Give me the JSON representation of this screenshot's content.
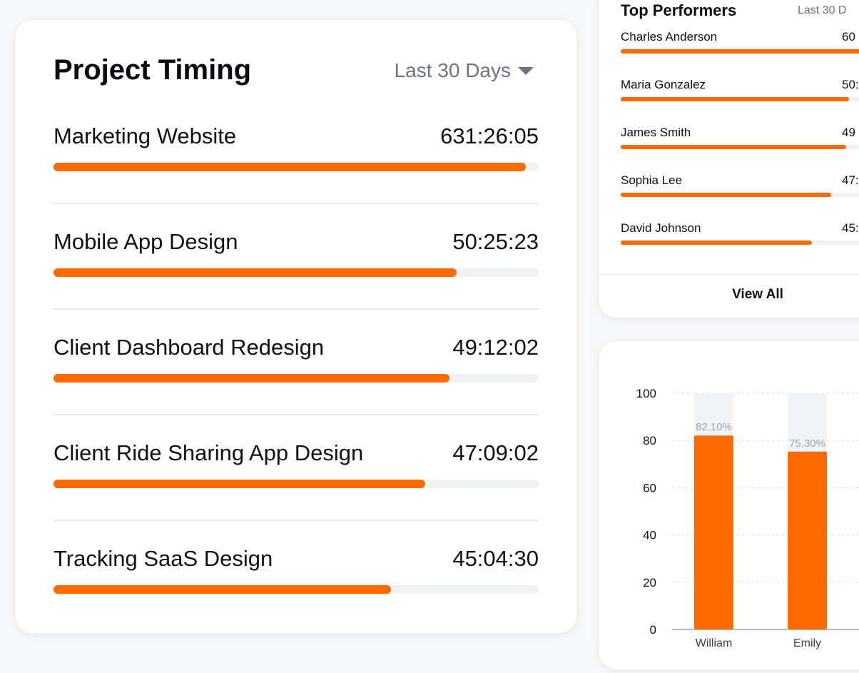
{
  "project_timing": {
    "title": "Project Timing",
    "range": "Last 30 Days",
    "rows": [
      {
        "name": "Marketing Website",
        "time": "631:26:05",
        "progress": 0.974
      },
      {
        "name": "Mobile App Design",
        "time": "50:25:23",
        "progress": 0.831
      },
      {
        "name": "Client Dashboard Redesign",
        "time": "49:12:02",
        "progress": 0.816
      },
      {
        "name": "Client Ride Sharing App Design",
        "time": "47:09:02",
        "progress": 0.766
      },
      {
        "name": "Tracking SaaS Design",
        "time": "45:04:30",
        "progress": 0.696
      }
    ]
  },
  "top_performers": {
    "title": "Top Performers",
    "range": "Last 30 D",
    "rows": [
      {
        "name": "Charles Anderson",
        "time": "60",
        "progress": 1.0
      },
      {
        "name": "Maria Gonzalez",
        "time": "50:",
        "progress": 0.82
      },
      {
        "name": "James Smith",
        "time": "49",
        "progress": 0.809
      },
      {
        "name": "Sophia Lee",
        "time": "47:",
        "progress": 0.756
      },
      {
        "name": "David Johnson",
        "time": "45:",
        "progress": 0.687
      }
    ],
    "view_all": "View All"
  },
  "colors": {
    "accent": "#ff6a00",
    "track": "#f1f2f4"
  },
  "chart_data": {
    "type": "bar",
    "categories": [
      "William",
      "Emily"
    ],
    "values": [
      82.1,
      75.3
    ],
    "value_labels": [
      "82.10%",
      "75.30%"
    ],
    "ylim": [
      0,
      100
    ],
    "yticks": [
      "0",
      "20",
      "40",
      "60",
      "80",
      "100"
    ],
    "grid": true
  }
}
